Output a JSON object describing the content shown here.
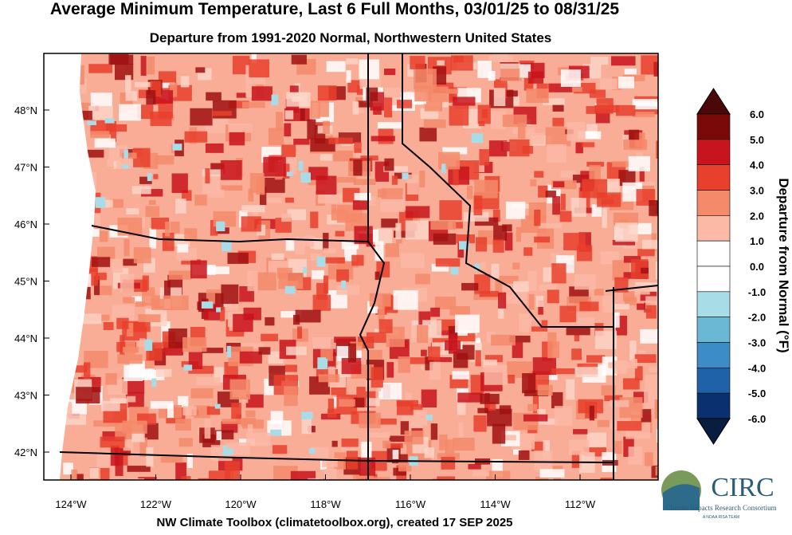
{
  "header": {
    "title": "Average Minimum Temperature, Last 6 Full Months, 03/01/25 to 08/31/25",
    "subtitle": "Departure from 1991-2020 Normal, Northwestern United States"
  },
  "map": {
    "lat_labels": [
      "48°N",
      "47°N",
      "46°N",
      "45°N",
      "44°N",
      "43°N",
      "42°N"
    ],
    "lon_labels": [
      "124°W",
      "122°W",
      "120°W",
      "118°W",
      "116°W",
      "114°W",
      "112°W"
    ]
  },
  "colorbar": {
    "title": "Departure from Normal (°F)",
    "labels": [
      "6.0",
      "5.0",
      "4.0",
      "3.0",
      "2.0",
      "1.0",
      "0.0",
      "-1.0",
      "-2.0",
      "-3.0",
      "-4.0",
      "-5.0",
      "-6.0"
    ],
    "colors": [
      "#4a0808",
      "#7a0a0a",
      "#c8141c",
      "#e8402c",
      "#f48a6a",
      "#fbb9a6",
      "#ffffff",
      "#ffffff",
      "#a8dce6",
      "#6bb8d4",
      "#3c8cc8",
      "#1f62a8",
      "#0a3070",
      "#081d40"
    ]
  },
  "footer": "NW Climate Toolbox (climatetoolbox.org), created 17 SEP 2025",
  "logo": {
    "name": "CIRC",
    "subtitle": "Climate Impacts Research Consortium",
    "tag": "A NOAA RISA TEAM"
  }
}
